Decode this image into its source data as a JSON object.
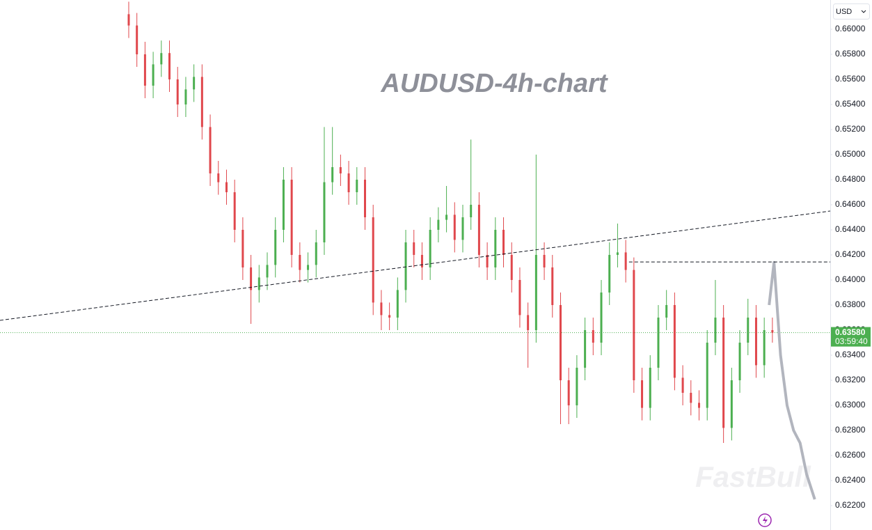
{
  "chart_data": {
    "type": "candlestick",
    "title": "AUDUSD-4h-chart",
    "currency": "USD",
    "watermark": "FastBull",
    "up_color": "#4caf50",
    "down_color": "#e0474c",
    "xlim": [
      -15.8,
      86.1
    ],
    "ylim": [
      0.620056,
      0.662333
    ],
    "yticks": [
      {
        "value": 0.66,
        "label": "0.66000"
      },
      {
        "value": 0.658,
        "label": "0.65800"
      },
      {
        "value": 0.656,
        "label": "0.65600"
      },
      {
        "value": 0.654,
        "label": "0.65400"
      },
      {
        "value": 0.652,
        "label": "0.65200"
      },
      {
        "value": 0.65,
        "label": "0.65000"
      },
      {
        "value": 0.648,
        "label": "0.64800"
      },
      {
        "value": 0.646,
        "label": "0.64600"
      },
      {
        "value": 0.644,
        "label": "0.64400"
      },
      {
        "value": 0.642,
        "label": "0.64200"
      },
      {
        "value": 0.64,
        "label": "0.64000"
      },
      {
        "value": 0.638,
        "label": "0.63800"
      },
      {
        "value": 0.636,
        "label": "0.63600"
      },
      {
        "value": 0.634,
        "label": "0.63400"
      },
      {
        "value": 0.632,
        "label": "0.63200"
      },
      {
        "value": 0.63,
        "label": "0.63000"
      },
      {
        "value": 0.628,
        "label": "0.62800"
      },
      {
        "value": 0.626,
        "label": "0.62600"
      },
      {
        "value": 0.624,
        "label": "0.62400"
      },
      {
        "value": 0.622,
        "label": "0.62200"
      }
    ],
    "open": [
      0.6612,
      0.6603,
      0.658,
      0.6555,
      0.6572,
      0.6581,
      0.656,
      0.654,
      0.6552,
      0.6562,
      0.6522,
      0.6485,
      0.6478,
      0.647,
      0.644,
      0.641,
      0.6392,
      0.6402,
      0.6412,
      0.644,
      0.648,
      0.642,
      0.6408,
      0.6412,
      0.643,
      0.6478,
      0.649,
      0.6485,
      0.647,
      0.648,
      0.645,
      0.6382,
      0.6372,
      0.637,
      0.6392,
      0.643,
      0.642,
      0.641,
      0.644,
      0.6448,
      0.6452,
      0.6432,
      0.645,
      0.646,
      0.642,
      0.641,
      0.644,
      0.642,
      0.64,
      0.6372,
      0.636,
      0.642,
      0.641,
      0.638,
      0.632,
      0.63,
      0.633,
      0.636,
      0.635,
      0.639,
      0.642,
      0.6422,
      0.6408,
      0.632,
      0.6298,
      0.633,
      0.637,
      0.638,
      0.6322,
      0.631,
      0.6302,
      0.6298,
      0.635,
      0.637,
      0.6282,
      0.632,
      0.635,
      0.637,
      0.6332,
      0.636
    ],
    "high": [
      0.6622,
      0.6613,
      0.659,
      0.6582,
      0.6591,
      0.6591,
      0.657,
      0.6562,
      0.6572,
      0.6572,
      0.6532,
      0.6495,
      0.6488,
      0.648,
      0.645,
      0.642,
      0.6412,
      0.6422,
      0.645,
      0.649,
      0.649,
      0.643,
      0.6422,
      0.644,
      0.6522,
      0.6522,
      0.65,
      0.6495,
      0.649,
      0.649,
      0.646,
      0.6392,
      0.6382,
      0.6402,
      0.644,
      0.644,
      0.643,
      0.645,
      0.6458,
      0.6475,
      0.6462,
      0.646,
      0.6512,
      0.647,
      0.643,
      0.645,
      0.645,
      0.643,
      0.641,
      0.6382,
      0.65,
      0.643,
      0.642,
      0.639,
      0.633,
      0.634,
      0.637,
      0.637,
      0.64,
      0.643,
      0.6445,
      0.6432,
      0.6418,
      0.633,
      0.634,
      0.638,
      0.6392,
      0.639,
      0.6332,
      0.632,
      0.6312,
      0.636,
      0.64,
      0.638,
      0.633,
      0.636,
      0.6385,
      0.638,
      0.637,
      0.637
    ],
    "low": [
      0.6593,
      0.657,
      0.6545,
      0.6545,
      0.6562,
      0.655,
      0.653,
      0.653,
      0.6542,
      0.6512,
      0.6475,
      0.6468,
      0.646,
      0.643,
      0.64,
      0.6365,
      0.6382,
      0.6392,
      0.6402,
      0.643,
      0.641,
      0.6398,
      0.6398,
      0.6402,
      0.642,
      0.6468,
      0.6475,
      0.646,
      0.646,
      0.644,
      0.6372,
      0.636,
      0.636,
      0.636,
      0.6382,
      0.641,
      0.64,
      0.64,
      0.643,
      0.6438,
      0.6422,
      0.6422,
      0.644,
      0.641,
      0.64,
      0.64,
      0.641,
      0.639,
      0.6362,
      0.633,
      0.635,
      0.64,
      0.637,
      0.6285,
      0.6285,
      0.629,
      0.632,
      0.634,
      0.634,
      0.638,
      0.641,
      0.6398,
      0.631,
      0.6288,
      0.6288,
      0.632,
      0.636,
      0.6312,
      0.63,
      0.6292,
      0.6288,
      0.6288,
      0.634,
      0.627,
      0.6272,
      0.631,
      0.634,
      0.6322,
      0.6322,
      0.635
    ],
    "close": [
      0.6603,
      0.658,
      0.6555,
      0.6572,
      0.6581,
      0.656,
      0.654,
      0.6552,
      0.6562,
      0.6522,
      0.6485,
      0.6478,
      0.647,
      0.644,
      0.641,
      0.6392,
      0.6402,
      0.6412,
      0.644,
      0.648,
      0.642,
      0.6408,
      0.6412,
      0.643,
      0.6478,
      0.649,
      0.6485,
      0.647,
      0.648,
      0.645,
      0.6382,
      0.6372,
      0.637,
      0.6392,
      0.643,
      0.642,
      0.641,
      0.644,
      0.6448,
      0.6452,
      0.6432,
      0.645,
      0.646,
      0.642,
      0.641,
      0.644,
      0.642,
      0.64,
      0.6372,
      0.636,
      0.642,
      0.641,
      0.638,
      0.632,
      0.63,
      0.633,
      0.636,
      0.635,
      0.639,
      0.642,
      0.6422,
      0.6408,
      0.632,
      0.6298,
      0.633,
      0.637,
      0.638,
      0.6322,
      0.631,
      0.6302,
      0.6298,
      0.635,
      0.637,
      0.6282,
      0.632,
      0.635,
      0.637,
      0.6332,
      0.636,
      0.6358
    ],
    "projection": {
      "color": "#b2b5be",
      "x": [
        78.6,
        79.2,
        80.0,
        80.8,
        81.6,
        82.4,
        83.2,
        84.2
      ],
      "values": [
        0.638,
        0.6414,
        0.634,
        0.63,
        0.628,
        0.627,
        0.6245,
        0.6225
      ]
    },
    "trendlines": [
      {
        "x": [
          -15.8,
          86.1
        ],
        "values": [
          0.63678,
          0.6455
        ]
      },
      {
        "x": [
          61.4,
          86.1
        ],
        "values": [
          0.64144,
          0.64144
        ]
      }
    ],
    "last_price": {
      "value": 0.6358,
      "label": "0.63580",
      "color": "#4caf50"
    },
    "countdown": "03:59:40"
  }
}
